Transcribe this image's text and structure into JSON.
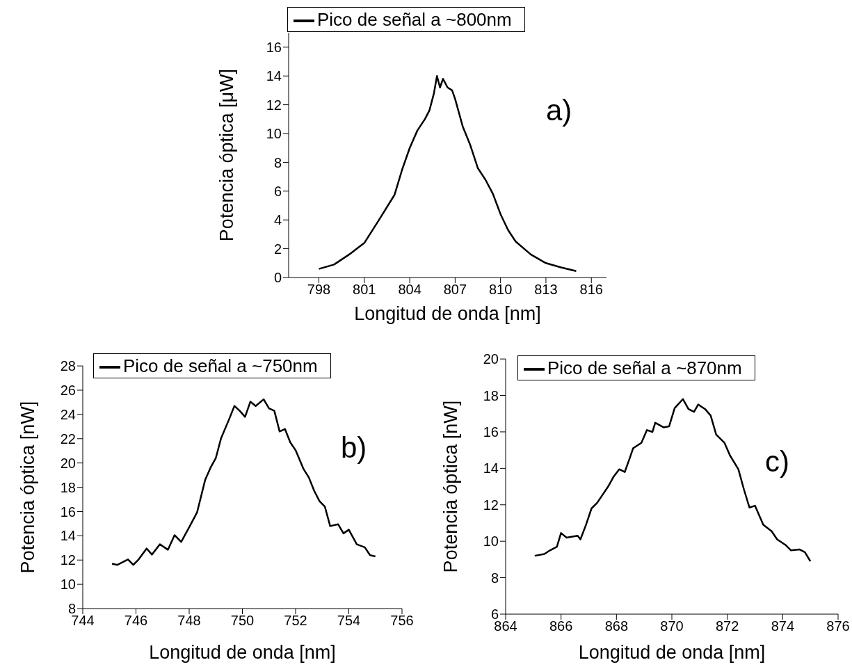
{
  "chart_data": [
    {
      "type": "line",
      "xlabel": "Longitud de onda [nm]",
      "ylabel": "Potencia óptica [μW]",
      "annotations": [
        "a)"
      ],
      "legend": "top",
      "grid": false,
      "marker": "none",
      "line_style": "solid",
      "xlim": [
        796,
        817
      ],
      "xticks": [
        798,
        801,
        804,
        807,
        810,
        813,
        816
      ],
      "ylim": [
        0,
        17
      ],
      "yticks": [
        0,
        2,
        4,
        6,
        8,
        10,
        12,
        14,
        16
      ],
      "x": [
        798,
        799,
        800,
        801,
        802,
        803,
        803.5,
        804,
        804.5,
        805,
        805.3,
        805.6,
        805.8,
        806,
        806.2,
        806.5,
        806.8,
        807,
        807.5,
        808,
        808.5,
        809,
        809.5,
        810,
        810.5,
        811,
        812,
        813,
        814,
        815
      ],
      "series": [
        {
          "name": "Pico de señal a ~800nm",
          "color": "#000000",
          "values": [
            0.6,
            0.9,
            1.6,
            2.4,
            4.05,
            5.75,
            7.5,
            9.0,
            10.2,
            11.0,
            11.6,
            12.8,
            14.0,
            13.2,
            13.8,
            13.2,
            13.0,
            12.4,
            10.5,
            9.2,
            7.6,
            6.8,
            5.8,
            4.4,
            3.3,
            2.5,
            1.6,
            1.0,
            0.7,
            0.45
          ]
        }
      ]
    },
    {
      "type": "line",
      "xlabel": "Longitud de onda [nm]",
      "ylabel": "Potencia óptica [nW]",
      "annotations": [
        "b)"
      ],
      "legend": "top left",
      "grid": false,
      "marker": "none",
      "line_style": "solid",
      "xlim": [
        744,
        756
      ],
      "xticks": [
        744,
        746,
        748,
        750,
        752,
        754,
        756
      ],
      "ylim": [
        8,
        28
      ],
      "yticks": [
        8,
        10,
        12,
        14,
        16,
        18,
        20,
        22,
        24,
        26,
        28
      ],
      "x": [
        745.1,
        745.3,
        745.7,
        745.9,
        746.1,
        746.4,
        746.6,
        746.9,
        747.2,
        747.45,
        747.7,
        748.0,
        748.3,
        748.6,
        748.8,
        749.0,
        749.2,
        749.5,
        749.7,
        749.9,
        750.1,
        750.3,
        750.5,
        750.8,
        751.0,
        751.2,
        751.4,
        751.6,
        751.8,
        752.0,
        752.3,
        752.5,
        752.7,
        752.9,
        753.1,
        753.3,
        753.6,
        753.8,
        754.0,
        754.3,
        754.6,
        754.8,
        755.0
      ],
      "series": [
        {
          "name": "Pico de señal a ~750nm",
          "color": "#000000",
          "values": [
            11.7,
            11.6,
            12.05,
            11.6,
            12.05,
            12.95,
            12.45,
            13.3,
            12.85,
            14.05,
            13.5,
            14.7,
            15.95,
            18.6,
            19.6,
            20.4,
            22.05,
            23.6,
            24.7,
            24.3,
            23.8,
            25.05,
            24.7,
            25.25,
            24.5,
            24.3,
            22.6,
            22.8,
            21.7,
            21.05,
            19.5,
            18.8,
            17.7,
            16.85,
            16.4,
            14.8,
            14.95,
            14.2,
            14.5,
            13.3,
            13.05,
            12.4,
            12.3
          ]
        }
      ]
    },
    {
      "type": "line",
      "xlabel": "Longitud de onda [nm]",
      "ylabel": "Potencia óptica [nW]",
      "annotations": [
        "c)"
      ],
      "legend": "top left",
      "grid": false,
      "marker": "none",
      "line_style": "solid",
      "xlim": [
        864,
        876
      ],
      "xticks": [
        864,
        866,
        868,
        870,
        872,
        874,
        876
      ],
      "ylim": [
        6,
        20
      ],
      "yticks": [
        6,
        8,
        10,
        12,
        14,
        16,
        18,
        20
      ],
      "x": [
        865.05,
        865.4,
        865.6,
        865.85,
        866.0,
        866.2,
        866.6,
        866.7,
        866.9,
        867.1,
        867.3,
        867.5,
        867.7,
        867.9,
        868.1,
        868.3,
        868.5,
        868.6,
        868.9,
        869.1,
        869.3,
        869.4,
        869.7,
        869.9,
        870.1,
        870.4,
        870.6,
        870.8,
        870.95,
        871.2,
        871.4,
        871.6,
        871.9,
        872.1,
        872.4,
        872.6,
        872.8,
        873.0,
        873.3,
        873.6,
        873.8,
        874.1,
        874.3,
        874.6,
        874.8,
        875.0
      ],
      "series": [
        {
          "name": "Pico de señal a ~870nm",
          "color": "#000000",
          "values": [
            9.2,
            9.3,
            9.5,
            9.7,
            10.45,
            10.2,
            10.3,
            10.1,
            10.9,
            11.8,
            12.1,
            12.55,
            13.0,
            13.55,
            13.95,
            13.8,
            14.65,
            15.1,
            15.4,
            16.1,
            16.0,
            16.5,
            16.25,
            16.3,
            17.3,
            17.8,
            17.25,
            17.1,
            17.5,
            17.25,
            16.9,
            15.85,
            15.4,
            14.7,
            13.95,
            12.85,
            11.85,
            11.95,
            10.9,
            10.55,
            10.1,
            9.8,
            9.5,
            9.55,
            9.4,
            8.9
          ]
        }
      ]
    }
  ]
}
